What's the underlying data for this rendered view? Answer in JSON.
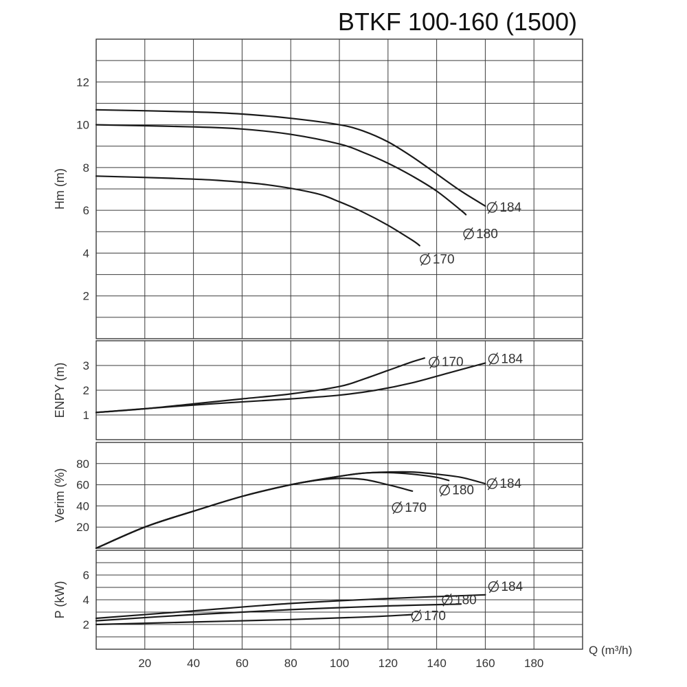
{
  "chart_data": {
    "type": "line",
    "title": "BTKF 100-160 (1500)",
    "xlabel": "Q (m³/h)",
    "x_ticks": [
      "20",
      "40",
      "60",
      "80",
      "100",
      "120",
      "140",
      "160",
      "180"
    ],
    "xlim": [
      0,
      200
    ],
    "grid": true,
    "panels": [
      {
        "ylabel": "Hm (m)",
        "ylim": [
          0,
          14
        ],
        "y_ticks": [
          "2",
          "4",
          "6",
          "8",
          "10",
          "12"
        ],
        "series": [
          {
            "name": "Ø 184",
            "label": "184",
            "points": [
              [
                0,
                10.7
              ],
              [
                40,
                10.6
              ],
              [
                60,
                10.5
              ],
              [
                80,
                10.3
              ],
              [
                100,
                10.0
              ],
              [
                110,
                9.7
              ],
              [
                120,
                9.2
              ],
              [
                130,
                8.5
              ],
              [
                140,
                7.7
              ],
              [
                150,
                6.9
              ],
              [
                160,
                6.2
              ]
            ]
          },
          {
            "name": "Ø 180",
            "label": "180",
            "points": [
              [
                0,
                10.0
              ],
              [
                40,
                9.9
              ],
              [
                60,
                9.8
              ],
              [
                80,
                9.55
              ],
              [
                100,
                9.1
              ],
              [
                110,
                8.7
              ],
              [
                120,
                8.2
              ],
              [
                130,
                7.6
              ],
              [
                140,
                6.9
              ],
              [
                150,
                6.0
              ],
              [
                152,
                5.8
              ]
            ]
          },
          {
            "name": "Ø 170",
            "label": "170",
            "points": [
              [
                0,
                7.6
              ],
              [
                30,
                7.5
              ],
              [
                50,
                7.4
              ],
              [
                70,
                7.2
              ],
              [
                90,
                6.8
              ],
              [
                100,
                6.4
              ],
              [
                110,
                5.9
              ],
              [
                120,
                5.3
              ],
              [
                130,
                4.6
              ],
              [
                133,
                4.35
              ]
            ]
          }
        ]
      },
      {
        "ylabel": "ENPY (m)",
        "ylim": [
          0,
          4
        ],
        "y_ticks": [
          "1",
          "2",
          "3"
        ],
        "series": [
          {
            "name": "Ø 170",
            "label": "170",
            "points": [
              [
                0,
                1.1
              ],
              [
                20,
                1.25
              ],
              [
                40,
                1.45
              ],
              [
                60,
                1.65
              ],
              [
                80,
                1.85
              ],
              [
                100,
                2.15
              ],
              [
                110,
                2.45
              ],
              [
                120,
                2.8
              ],
              [
                130,
                3.15
              ],
              [
                135,
                3.3
              ]
            ]
          },
          {
            "name": "Ø 184",
            "label": "184",
            "points": [
              [
                0,
                1.1
              ],
              [
                40,
                1.4
              ],
              [
                80,
                1.65
              ],
              [
                100,
                1.8
              ],
              [
                115,
                2.0
              ],
              [
                130,
                2.3
              ],
              [
                145,
                2.7
              ],
              [
                160,
                3.1
              ]
            ]
          }
        ]
      },
      {
        "ylabel": "Verim (%)",
        "ylim": [
          0,
          100
        ],
        "y_ticks": [
          "20",
          "40",
          "60",
          "80"
        ],
        "series": [
          {
            "name": "Ø 184",
            "label": "184",
            "points": [
              [
                0,
                0
              ],
              [
                20,
                20
              ],
              [
                40,
                35
              ],
              [
                60,
                49
              ],
              [
                80,
                60
              ],
              [
                100,
                68
              ],
              [
                110,
                71
              ],
              [
                120,
                72
              ],
              [
                130,
                72
              ],
              [
                140,
                70
              ],
              [
                150,
                67
              ],
              [
                160,
                61
              ]
            ]
          },
          {
            "name": "Ø 180",
            "label": "180",
            "points": [
              [
                0,
                0
              ],
              [
                20,
                20
              ],
              [
                40,
                35
              ],
              [
                60,
                49
              ],
              [
                80,
                60
              ],
              [
                100,
                68
              ],
              [
                110,
                71
              ],
              [
                120,
                71.5
              ],
              [
                130,
                70
              ],
              [
                140,
                67
              ],
              [
                145,
                64
              ]
            ]
          },
          {
            "name": "Ø 170",
            "label": "170",
            "points": [
              [
                0,
                0
              ],
              [
                20,
                20
              ],
              [
                40,
                35
              ],
              [
                60,
                49
              ],
              [
                80,
                60
              ],
              [
                90,
                64
              ],
              [
                100,
                66
              ],
              [
                110,
                65
              ],
              [
                120,
                60
              ],
              [
                130,
                54
              ]
            ]
          }
        ]
      },
      {
        "ylabel": "P (kW)",
        "ylim": [
          0,
          8
        ],
        "y_ticks": [
          "2",
          "4",
          "6"
        ],
        "series": [
          {
            "name": "Ø 184",
            "label": "184",
            "points": [
              [
                0,
                2.5
              ],
              [
                40,
                3.1
              ],
              [
                80,
                3.7
              ],
              [
                120,
                4.1
              ],
              [
                160,
                4.4
              ]
            ]
          },
          {
            "name": "Ø 180",
            "label": "180",
            "points": [
              [
                0,
                2.3
              ],
              [
                40,
                2.8
              ],
              [
                80,
                3.2
              ],
              [
                120,
                3.5
              ],
              [
                150,
                3.65
              ]
            ]
          },
          {
            "name": "Ø 170",
            "label": "170",
            "points": [
              [
                0,
                2.0
              ],
              [
                40,
                2.2
              ],
              [
                80,
                2.4
              ],
              [
                110,
                2.6
              ],
              [
                130,
                2.8
              ]
            ]
          }
        ]
      }
    ]
  }
}
